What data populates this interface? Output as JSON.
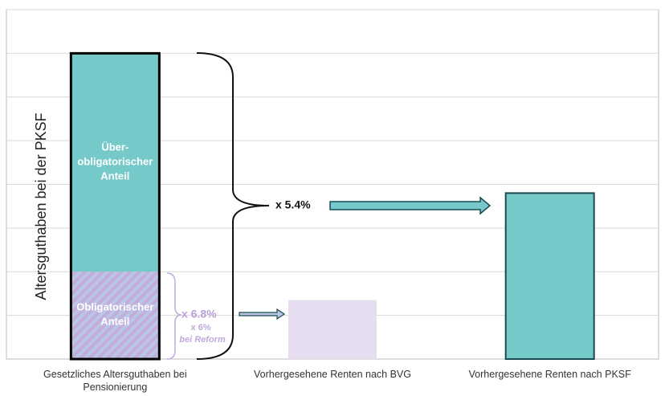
{
  "chart_data": {
    "type": "bar",
    "ylabel": "Altersguthaben bei der PKSF",
    "categories": [
      "Gesetzliches Altersguthaben bei Pensionierung",
      "Vorhergesehene Renten nach BVG",
      "Vorhergesehene Renten nach PKSF"
    ],
    "ylim": [
      0,
      8
    ],
    "gridlines": [
      1,
      2,
      3,
      4,
      5,
      6,
      7,
      8
    ],
    "series": [
      {
        "name": "Obligatorischer Anteil",
        "color": "#b9a8d8",
        "pattern": "hatch",
        "values": [
          2,
          null,
          null
        ]
      },
      {
        "name": "Über- obligatorischer Anteil",
        "color": "#76c9c9",
        "values": [
          5,
          null,
          null
        ]
      },
      {
        "color": "#e6ddf1",
        "values": [
          null,
          1.35,
          null
        ]
      },
      {
        "color": "#76c9c9",
        "values": [
          null,
          null,
          3.8
        ]
      }
    ],
    "annotations": {
      "rate_total": "x 5.4%",
      "rate_mandatory": "x 6.8%",
      "rate_reform": "x 6%",
      "reform_note": "bei Reform"
    }
  }
}
